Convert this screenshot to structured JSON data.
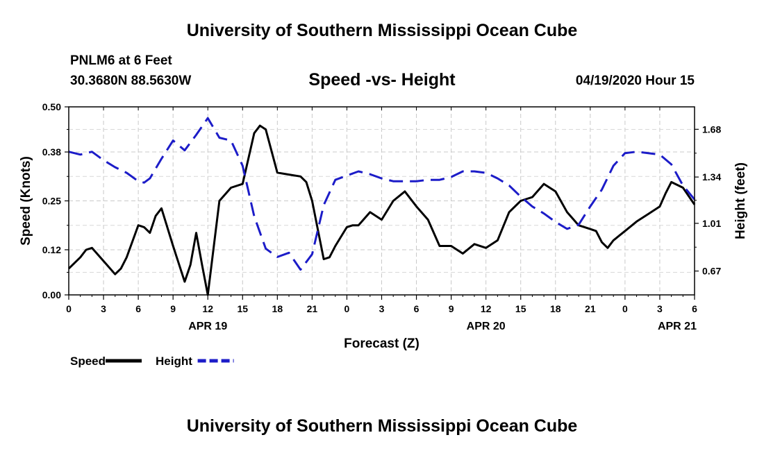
{
  "header": {
    "title": "University of Southern Mississippi Ocean Cube",
    "station": "PNLM6 at 6 Feet",
    "coordinates": "30.3680N 88.5630W",
    "subtitle": "Speed -vs- Height",
    "datetime": "04/19/2020 Hour 15"
  },
  "footer": {
    "title": "University of Southern Mississippi Ocean Cube"
  },
  "chart_data": {
    "type": "line",
    "title": "Speed -vs- Height",
    "xlabel": "Forecast (Z)",
    "ylabel": "Speed (Knots)",
    "y2label": "Height (feet)",
    "xlim": [
      0,
      54
    ],
    "ylim": [
      0,
      0.5
    ],
    "y2lim": [
      0.5,
      1.84
    ],
    "grid": true,
    "x_ticks": [
      0,
      3,
      6,
      9,
      12,
      15,
      18,
      21,
      24,
      27,
      30,
      33,
      36,
      39,
      42,
      45,
      48,
      51,
      54
    ],
    "x_tick_labels": [
      "0",
      "3",
      "6",
      "9",
      "12",
      "15",
      "18",
      "21",
      "0",
      "3",
      "6",
      "9",
      "12",
      "15",
      "18",
      "21",
      "0",
      "3",
      "6"
    ],
    "date_labels": [
      {
        "x": 12,
        "label": "APR 19"
      },
      {
        "x": 36,
        "label": "APR 20"
      },
      {
        "x": 52.5,
        "label": "APR 21"
      }
    ],
    "y_ticks": [
      0.0,
      0.12,
      0.25,
      0.38,
      0.5
    ],
    "y_tick_labels": [
      "0.00",
      "0.12",
      "0.25",
      "0.38",
      "0.50"
    ],
    "y2_ticks": [
      0.67,
      1.01,
      1.34,
      1.68
    ],
    "y2_tick_labels": [
      "0.67",
      "1.01",
      "1.34",
      "1.68"
    ],
    "series": [
      {
        "name": "Speed",
        "axis": "left",
        "color": "#000000",
        "dash": "solid",
        "x": [
          0,
          1,
          1.5,
          2,
          3,
          4,
          4.5,
          5,
          6,
          6.5,
          7,
          7.5,
          8,
          9,
          10,
          10.5,
          11,
          11.5,
          12,
          13,
          14,
          15,
          16,
          16.5,
          17,
          18,
          19,
          20,
          20.5,
          21,
          22,
          22.5,
          23,
          24,
          24.5,
          25,
          26,
          27,
          28,
          29,
          30,
          31,
          32,
          33,
          34,
          35,
          36,
          37,
          38,
          39,
          40,
          41,
          42,
          43,
          44,
          45,
          45.5,
          46,
          46.5,
          47,
          48,
          49,
          50,
          51,
          51.5,
          52,
          53,
          54
        ],
        "values": [
          0.07,
          0.1,
          0.12,
          0.125,
          0.09,
          0.055,
          0.07,
          0.1,
          0.185,
          0.18,
          0.165,
          0.21,
          0.23,
          0.13,
          0.035,
          0.08,
          0.165,
          0.08,
          0.0,
          0.25,
          0.285,
          0.295,
          0.43,
          0.45,
          0.44,
          0.325,
          0.32,
          0.315,
          0.3,
          0.25,
          0.095,
          0.1,
          0.13,
          0.18,
          0.185,
          0.185,
          0.22,
          0.2,
          0.25,
          0.275,
          0.235,
          0.2,
          0.13,
          0.13,
          0.11,
          0.135,
          0.125,
          0.145,
          0.22,
          0.25,
          0.26,
          0.295,
          0.275,
          0.22,
          0.185,
          0.175,
          0.17,
          0.14,
          0.125,
          0.145,
          0.17,
          0.195,
          0.215,
          0.235,
          0.27,
          0.3,
          0.285,
          0.24
        ]
      },
      {
        "name": "Height",
        "axis": "right",
        "color": "#1c1cc8",
        "dash": "dashed",
        "x": [
          0,
          1,
          2,
          3,
          4,
          5,
          6,
          6.5,
          7,
          8,
          9,
          10,
          11,
          12,
          13,
          14,
          15,
          16,
          17,
          18,
          19,
          20,
          21,
          22,
          23,
          24,
          25,
          26,
          27,
          28,
          29,
          30,
          31,
          32,
          33,
          34,
          35,
          36,
          37,
          38,
          39,
          40,
          41,
          42,
          43,
          44,
          45,
          46,
          47,
          48,
          49,
          50,
          51,
          52,
          53,
          54
        ],
        "values": [
          1.52,
          1.5,
          1.52,
          1.46,
          1.41,
          1.37,
          1.31,
          1.3,
          1.33,
          1.47,
          1.6,
          1.53,
          1.64,
          1.76,
          1.62,
          1.6,
          1.42,
          1.06,
          0.83,
          0.77,
          0.8,
          0.68,
          0.79,
          1.14,
          1.32,
          1.35,
          1.38,
          1.36,
          1.33,
          1.31,
          1.31,
          1.31,
          1.32,
          1.32,
          1.34,
          1.38,
          1.38,
          1.37,
          1.33,
          1.28,
          1.2,
          1.13,
          1.08,
          1.02,
          0.97,
          1.0,
          1.13,
          1.25,
          1.42,
          1.51,
          1.52,
          1.51,
          1.5,
          1.43,
          1.28,
          1.18
        ]
      }
    ],
    "legend": {
      "placement": "bottom-left",
      "entries": [
        "Speed",
        "Height"
      ]
    }
  }
}
